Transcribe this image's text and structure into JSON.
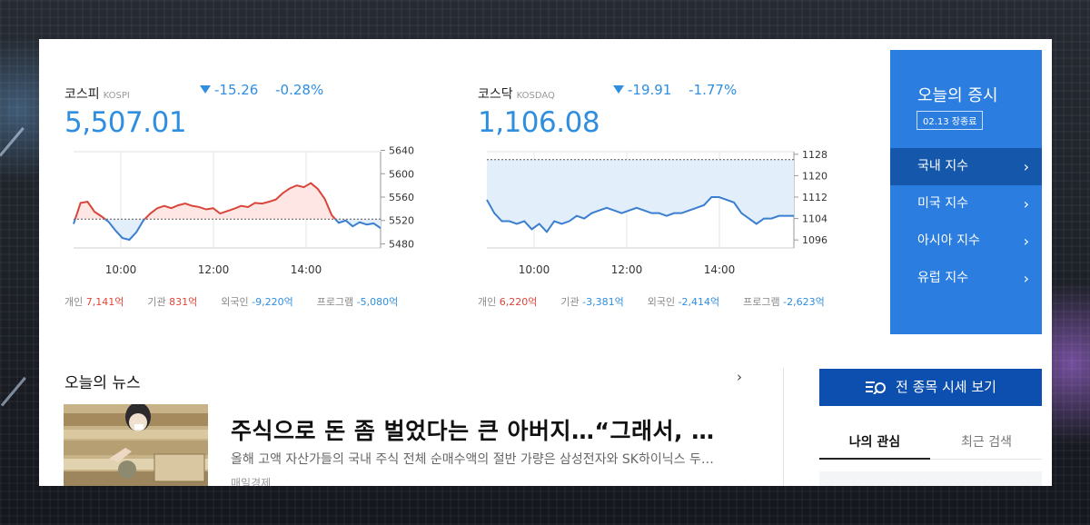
{
  "kospi": {
    "name": "코스피",
    "name_en": "KOSPI",
    "value": "5,507.01",
    "change": "-15.26",
    "change_pct": "-0.28%",
    "flows": [
      {
        "label": "개인",
        "value": "7,141억",
        "dir": "pos"
      },
      {
        "label": "기관",
        "value": "831억",
        "dir": "pos"
      },
      {
        "label": "외국인",
        "value": "-9,220억",
        "dir": "neg"
      },
      {
        "label": "프로그램",
        "value": "-5,080억",
        "dir": "neg"
      }
    ]
  },
  "kosdaq": {
    "name": "코스닥",
    "name_en": "KOSDAQ",
    "value": "1,106.08",
    "change": "-19.91",
    "change_pct": "-1.77%",
    "flows": [
      {
        "label": "개인",
        "value": "6,220억",
        "dir": "pos"
      },
      {
        "label": "기관",
        "value": "-3,381억",
        "dir": "neg"
      },
      {
        "label": "외국인",
        "value": "-2,414억",
        "dir": "neg"
      },
      {
        "label": "프로그램",
        "value": "-2,623억",
        "dir": "neg"
      }
    ]
  },
  "chart_data": [
    {
      "type": "line",
      "series": [
        {
          "values": [
            5514,
            5550,
            5552,
            5535,
            5527,
            5518,
            5503,
            5490,
            5487,
            5500,
            5520,
            5532,
            5541,
            5545,
            5541,
            5546,
            5549,
            5545,
            5543,
            5539,
            5541,
            5532,
            5536,
            5540,
            5545,
            5543,
            5550,
            5549,
            5552,
            5556,
            5567,
            5575,
            5580,
            5577,
            5584,
            5574,
            5557,
            5529,
            5516,
            5520,
            5510,
            5517,
            5513,
            5515,
            5507
          ]
        }
      ],
      "baseline": 5522.27,
      "x_ticks": [
        "10:00",
        "12:00",
        "14:00"
      ],
      "y_ticks": [
        "5640",
        "5600",
        "5560",
        "5520",
        "5480"
      ],
      "ylim": [
        5473,
        5647
      ],
      "colors": {
        "up": "#d9453b",
        "down": "#3a7fcf"
      }
    },
    {
      "type": "line",
      "series": [
        {
          "values": [
            1111,
            1106,
            1103,
            1103,
            1102,
            1103,
            1100,
            1102,
            1099,
            1103,
            1102,
            1103,
            1105,
            1104,
            1106,
            1107,
            1108,
            1107,
            1106,
            1107,
            1108,
            1107,
            1106,
            1106,
            1105,
            1106,
            1106,
            1107,
            1108,
            1109,
            1112,
            1112,
            1111,
            1110,
            1106,
            1104,
            1102,
            1104,
            1104,
            1105,
            1105,
            1105
          ]
        }
      ],
      "baseline": 1125.99,
      "x_ticks": [
        "10:00",
        "12:00",
        "14:00"
      ],
      "y_ticks": [
        "1128",
        "1120",
        "1112",
        "1104",
        "1096"
      ],
      "ylim": [
        1093,
        1131
      ],
      "colors": {
        "up": "#d9453b",
        "down": "#3a7fcf"
      }
    }
  ],
  "market": {
    "title": "오늘의 증시",
    "badge": "02.13 장종료",
    "items": [
      "국내 지수",
      "미국 지수",
      "아시아 지수",
      "유럽 지수"
    ]
  },
  "news": {
    "section_title": "오늘의 뉴스",
    "headline": "주식으로 돈 좀 벌었다는 큰 아버지…“그래서, …",
    "summary": "올해 고액 자산가들의 국내 주식 전체 순매수액의 절반 가량은 삼성전자와 SK하이닉스 두…",
    "source": "매일경제"
  },
  "sidebar": {
    "all_stocks_button": "전 종목 시세 보기",
    "tabs": [
      "나의 관심",
      "최근 검색"
    ]
  },
  "icons": {
    "more": "chevron-right-icon",
    "list_search": "list-search-icon",
    "down": "triangle-down-icon"
  }
}
